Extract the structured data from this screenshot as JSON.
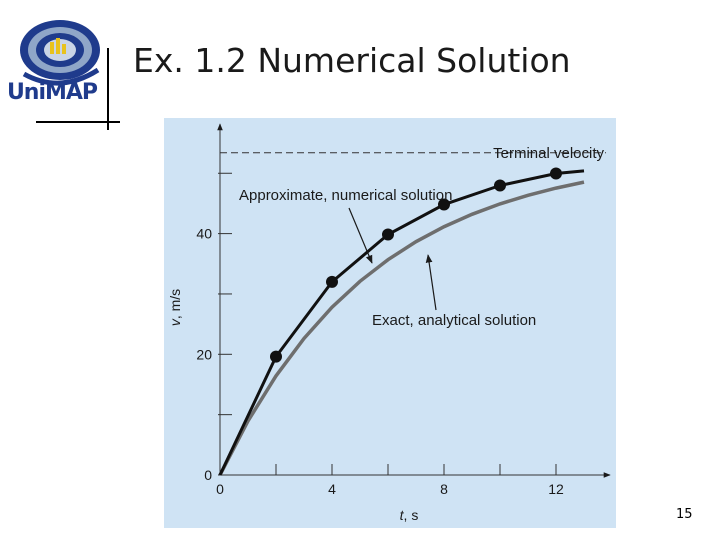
{
  "slide": {
    "title": "Ex. 1.2 Numerical Solution",
    "page_number": "15",
    "logo_text": "UniMAP"
  },
  "chart_data": {
    "type": "line",
    "xlabel_var": "t",
    "xlabel_unit": ", s",
    "ylabel_var": "v",
    "ylabel_unit": ", m/s",
    "xlim": [
      0,
      13.5
    ],
    "ylim": [
      0,
      57.5
    ],
    "x_ticks": [
      0,
      2,
      4,
      6,
      8,
      10,
      12
    ],
    "x_tick_labels": [
      {
        "x": 0,
        "label": "0"
      },
      {
        "x": 4,
        "label": "4"
      },
      {
        "x": 8,
        "label": "8"
      },
      {
        "x": 12,
        "label": "12"
      }
    ],
    "y_ticks": [
      0,
      10,
      20,
      30,
      40,
      50
    ],
    "y_tick_labels": [
      {
        "y": 0,
        "label": "0"
      },
      {
        "y": 20,
        "label": "20"
      },
      {
        "y": 40,
        "label": "40"
      }
    ],
    "terminal_velocity": 53.4,
    "series": [
      {
        "name": "Approximate, numerical solution",
        "x": [
          0,
          2,
          4,
          6,
          8,
          10,
          12,
          13
        ],
        "y": [
          0,
          19.62,
          32.0,
          39.85,
          44.82,
          47.97,
          49.96,
          50.4
        ],
        "markers": [
          2,
          4,
          6,
          8,
          10,
          12
        ]
      },
      {
        "name": "Exact, analytical solution",
        "x": [
          0,
          1,
          2,
          3,
          4,
          5,
          6,
          7,
          8,
          9,
          10,
          11,
          12,
          13
        ],
        "y": [
          0,
          8.96,
          16.42,
          22.63,
          27.8,
          32.1,
          35.68,
          38.66,
          41.14,
          43.2,
          44.92,
          46.35,
          47.54,
          48.53
        ]
      }
    ],
    "annotations": {
      "terminal": "Terminal velocity",
      "approx": "Approximate, numerical solution",
      "exact": "Exact, analytical solution"
    },
    "colors": {
      "numerical": "#111111",
      "analytical": "#6e6e6e",
      "background": "#cfe3f4"
    }
  }
}
